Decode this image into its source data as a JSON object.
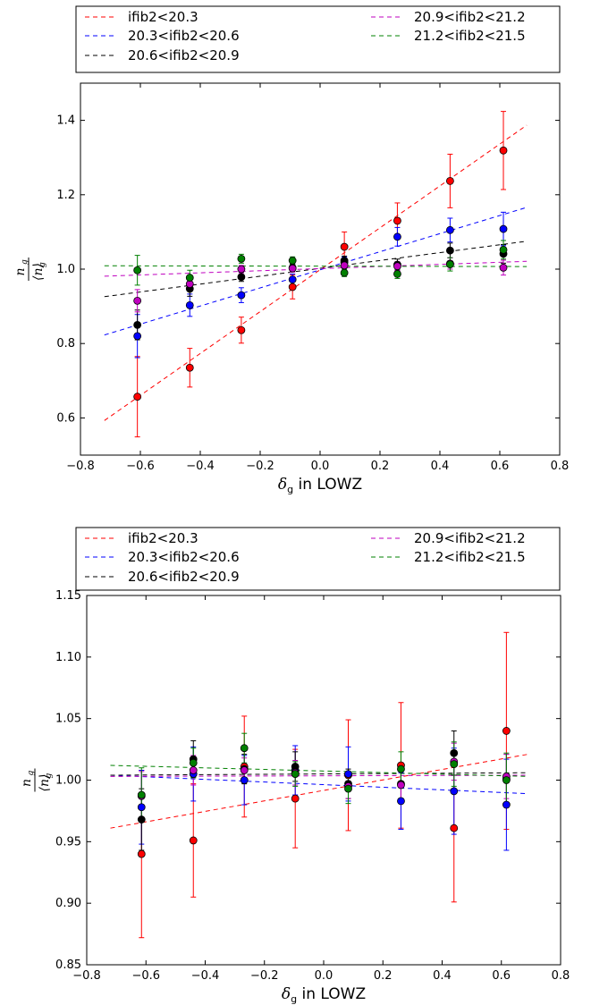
{
  "chart_data": [
    {
      "type": "scatter",
      "xlabel_symbol": "δ",
      "xlabel_sub": "g",
      "xlabel_text": " in LOWZ",
      "ylabel_num": "n",
      "ylabel_den": "⟨n⟩",
      "ylabel_sub": "g",
      "xlim": [
        -0.8,
        0.8
      ],
      "ylim": [
        0.5,
        1.5
      ],
      "xticks": [
        "−0.8",
        "−0.6",
        "−0.4",
        "−0.2",
        "0.0",
        "0.2",
        "0.4",
        "0.6",
        "0.8"
      ],
      "yticks": [
        "0.6",
        "0.8",
        "1.0",
        "1.2",
        "1.4"
      ],
      "legend_placement": "above",
      "x": [
        -0.61,
        -0.435,
        -0.263,
        -0.092,
        0.081,
        0.258,
        0.434,
        0.612
      ],
      "series": [
        {
          "name": "ifib2<20.3",
          "color": "#ff0000",
          "values": [
            0.657,
            0.735,
            0.836,
            0.952,
            1.06,
            1.13,
            1.237,
            1.319
          ],
          "errors": [
            0.108,
            0.052,
            0.035,
            0.032,
            0.04,
            0.048,
            0.072,
            0.105
          ],
          "fit": [
            [
              -0.72,
              0.593
            ],
            [
              0.69,
              1.387
            ]
          ]
        },
        {
          "name": "20.3<ifib2<20.6",
          "color": "#0000ff",
          "values": [
            0.82,
            0.903,
            0.93,
            0.972,
            1.018,
            1.087,
            1.105,
            1.108
          ],
          "errors": [
            0.058,
            0.03,
            0.02,
            0.015,
            0.015,
            0.025,
            0.032,
            0.045
          ],
          "fit": [
            [
              -0.72,
              0.823
            ],
            [
              0.69,
              1.166
            ]
          ]
        },
        {
          "name": "20.6<ifib2<20.9",
          "color": "#000000",
          "values": [
            0.85,
            0.947,
            0.979,
            1.004,
            1.023,
            1.012,
            1.05,
            1.041
          ],
          "errors": [
            0.04,
            0.02,
            0.012,
            0.01,
            0.012,
            0.015,
            0.02,
            0.025
          ],
          "fit": [
            [
              -0.72,
              0.926
            ],
            [
              0.69,
              1.075
            ]
          ]
        },
        {
          "name": "20.9<ifib2<21.2",
          "color": "#bf00bf",
          "values": [
            0.915,
            0.96,
            1.0,
            1.002,
            1.01,
            1.008,
            1.015,
            1.004
          ],
          "errors": [
            0.03,
            0.015,
            0.01,
            0.01,
            0.01,
            0.012,
            0.015,
            0.02
          ],
          "fit": [
            [
              -0.72,
              0.981
            ],
            [
              0.69,
              1.021
            ]
          ]
        },
        {
          "name": "21.2<ifib2<21.5",
          "color": "#008000",
          "values": [
            0.997,
            0.977,
            1.028,
            1.023,
            0.99,
            0.987,
            1.013,
            1.052
          ],
          "errors": [
            0.04,
            0.02,
            0.012,
            0.01,
            0.01,
            0.012,
            0.018,
            0.025
          ],
          "fit": [
            [
              -0.72,
              1.009
            ],
            [
              0.69,
              1.007
            ]
          ]
        }
      ]
    },
    {
      "type": "scatter",
      "xlabel_symbol": "δ",
      "xlabel_sub": "g",
      "xlabel_text": " in LOWZ",
      "ylabel_num": "n",
      "ylabel_den": "⟨n⟩",
      "ylabel_sub": "g",
      "xlim": [
        -0.8,
        0.8
      ],
      "ylim": [
        0.85,
        1.15
      ],
      "xticks": [
        "−0.8",
        "−0.6",
        "−0.4",
        "−0.2",
        "0.0",
        "0.2",
        "0.4",
        "0.6",
        "0.8"
      ],
      "yticks": [
        "0.85",
        "0.90",
        "0.95",
        "1.00",
        "1.05",
        "1.10",
        "1.15"
      ],
      "legend_placement": "above",
      "x": [
        -0.615,
        -0.44,
        -0.268,
        -0.096,
        0.083,
        0.261,
        0.44,
        0.617
      ],
      "series": [
        {
          "name": "ifib2<20.3",
          "color": "#ff0000",
          "values": [
            0.94,
            0.951,
            1.011,
            0.985,
            1.004,
            1.012,
            0.961,
            1.04
          ],
          "errors": [
            0.068,
            0.046,
            0.041,
            0.04,
            0.045,
            0.051,
            0.06,
            0.08
          ],
          "fit": [
            [
              -0.72,
              0.961
            ],
            [
              0.69,
              1.021
            ]
          ]
        },
        {
          "name": "20.3<ifib2<20.6",
          "color": "#0000ff",
          "values": [
            0.978,
            1.005,
            1.0,
            1.008,
            1.005,
            0.983,
            0.991,
            0.98
          ],
          "errors": [
            0.03,
            0.022,
            0.02,
            0.02,
            0.022,
            0.023,
            0.035,
            0.037
          ],
          "fit": [
            [
              -0.72,
              1.004
            ],
            [
              0.69,
              0.989
            ]
          ]
        },
        {
          "name": "20.6<ifib2<20.9",
          "color": "#000000",
          "values": [
            0.968,
            1.017,
            1.009,
            1.011,
            0.997,
            0.997,
            1.022,
            1.001
          ],
          "errors": [
            0.025,
            0.015,
            0.012,
            0.012,
            0.012,
            0.015,
            0.018,
            0.02
          ],
          "fit": [
            [
              -0.72,
              1.004
            ],
            [
              0.69,
              1.006
            ]
          ]
        },
        {
          "name": "20.9<ifib2<21.2",
          "color": "#bf00bf",
          "values": [
            0.987,
            1.008,
            1.008,
            1.006,
            0.995,
            0.996,
            1.015,
            1.003
          ],
          "errors": [
            0.02,
            0.012,
            0.01,
            0.01,
            0.01,
            0.012,
            0.015,
            0.018
          ],
          "fit": [
            [
              -0.72,
              1.003
            ],
            [
              0.69,
              1.004
            ]
          ]
        },
        {
          "name": "21.2<ifib2<21.5",
          "color": "#008000",
          "values": [
            0.988,
            1.014,
            1.026,
            1.005,
            0.993,
            1.009,
            1.013,
            1.0
          ],
          "errors": [
            0.022,
            0.012,
            0.012,
            0.01,
            0.012,
            0.014,
            0.018,
            0.022
          ],
          "fit": [
            [
              -0.72,
              1.012
            ],
            [
              0.69,
              1.003
            ]
          ]
        }
      ]
    }
  ]
}
